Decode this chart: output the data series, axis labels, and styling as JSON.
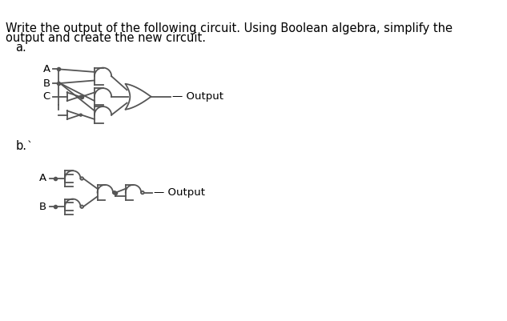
{
  "title_line1": "Write the output of the following circuit. Using Boolean algebra, simplify the",
  "title_line2": "output and create the new circuit.",
  "label_a": "a.",
  "label_b": "b.",
  "bg_color": "#ffffff",
  "text_color": "#000000",
  "line_color": "#555555",
  "font_size_title": 10.5,
  "font_size_label": 10.5,
  "font_size_io": 9.5
}
